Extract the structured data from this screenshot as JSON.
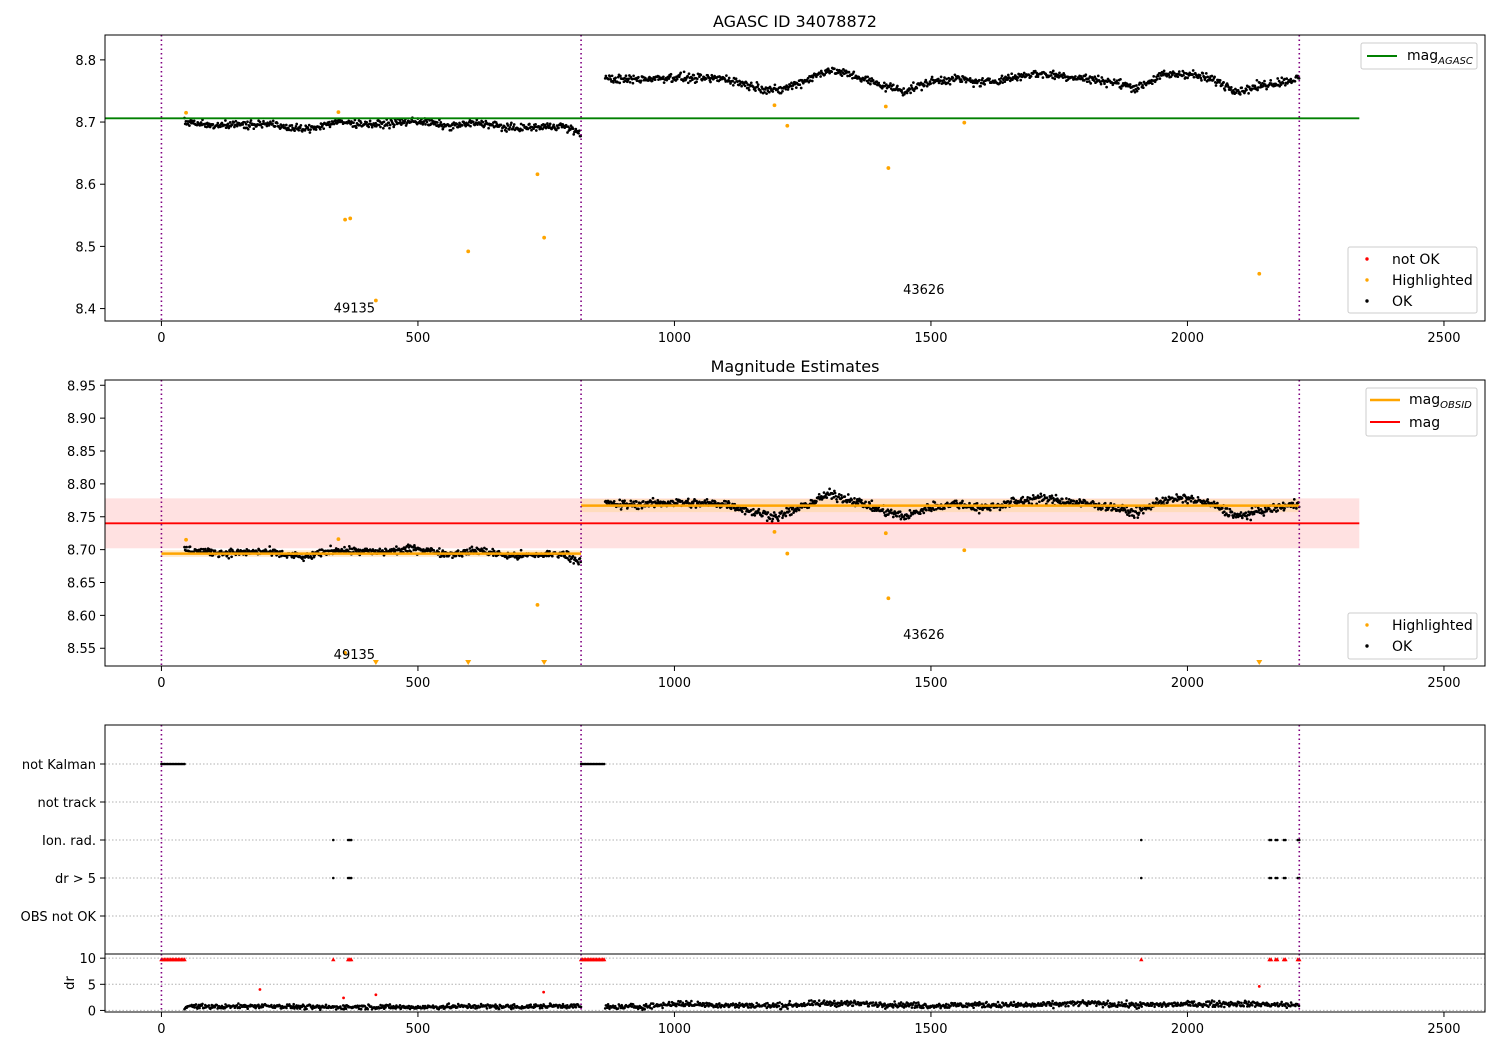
{
  "colors": {
    "ok": "#000000",
    "not_ok": "#ff0000",
    "highlighted": "#ffa500",
    "mag_agasc": "#008000",
    "mag_obsid": "#ffa500",
    "mag": "#ff0000",
    "obs_boundary": "#800080",
    "grid": "#b0b0b0"
  },
  "obs_boundaries": [
    0,
    818,
    2218
  ],
  "obsids": [
    {
      "label": "49135",
      "x_start": 0,
      "x_end": 818
    },
    {
      "label": "43626",
      "x_start": 818,
      "x_end": 2218
    }
  ],
  "chart_data": [
    {
      "type": "scatter",
      "title": "AGASC ID 34078872",
      "xlabel": "",
      "ylabel": "",
      "xlim": [
        -110,
        2580
      ],
      "ylim": [
        8.38,
        8.84
      ],
      "xticks": [
        0,
        500,
        1000,
        1500,
        2000,
        2500
      ],
      "yticks": [
        8.4,
        8.5,
        8.6,
        8.7,
        8.8
      ],
      "ytick_labels": [
        "8.4",
        "8.5",
        "8.6",
        "8.7",
        "8.8"
      ],
      "obsid_label_positions": [
        {
          "x": 365,
          "y": 8.4
        },
        {
          "x": 1475,
          "y": 8.43
        }
      ],
      "lines": [
        {
          "name": "mag_AGASC",
          "x": [
            -110,
            2335
          ],
          "y": [
            8.706,
            8.706
          ]
        }
      ],
      "series": [
        {
          "name": "not OK",
          "kind": "points",
          "x": [],
          "y": []
        },
        {
          "name": "Highlighted",
          "kind": "points",
          "x": [
            48,
            345,
            358,
            368,
            418,
            598,
            733,
            746,
            1195,
            1220,
            1412,
            1417,
            1565,
            2140
          ],
          "y": [
            8.715,
            8.716,
            8.543,
            8.545,
            8.413,
            8.492,
            8.616,
            8.514,
            8.727,
            8.694,
            8.725,
            8.626,
            8.699,
            8.456
          ]
        },
        {
          "name": "OK",
          "kind": "noisy-segments",
          "segments": [
            {
              "x": [
                45,
                120,
                200,
                280,
                340,
                420,
                500,
                560,
                620,
                680,
                740,
                780,
                818
              ],
              "y": [
                8.7,
                8.695,
                8.697,
                8.688,
                8.7,
                8.696,
                8.702,
                8.693,
                8.699,
                8.69,
                8.692,
                8.694,
                8.682
              ],
              "spread": 0.006
            },
            {
              "x": [
                865,
                900,
                950,
                1000,
                1050,
                1100,
                1150,
                1200,
                1250,
                1300,
                1350,
                1400,
                1450,
                1500,
                1550,
                1600,
                1650,
                1700,
                1750,
                1800,
                1850,
                1900,
                1950,
                2000,
                2050,
                2100,
                2150,
                2218
              ],
              "y": [
                8.77,
                8.768,
                8.77,
                8.772,
                8.77,
                8.77,
                8.758,
                8.75,
                8.765,
                8.784,
                8.775,
                8.76,
                8.75,
                8.765,
                8.77,
                8.763,
                8.77,
                8.778,
                8.775,
                8.77,
                8.765,
                8.755,
                8.775,
                8.778,
                8.768,
                8.75,
                8.76,
                8.77
              ],
              "spread": 0.007
            }
          ]
        }
      ],
      "legends": [
        {
          "position": "upper right",
          "entries": [
            "mag_AGASC"
          ]
        },
        {
          "position": "lower right",
          "entries": [
            "not OK",
            "Highlighted",
            "OK"
          ]
        }
      ]
    },
    {
      "type": "scatter",
      "title": "Magnitude Estimates",
      "xlabel": "",
      "ylabel": "",
      "xlim": [
        -110,
        2580
      ],
      "ylim": [
        8.523,
        8.958
      ],
      "xticks": [
        0,
        500,
        1000,
        1500,
        2000,
        2500
      ],
      "yticks": [
        8.55,
        8.6,
        8.65,
        8.7,
        8.75,
        8.8,
        8.85,
        8.9,
        8.95
      ],
      "ytick_labels": [
        "8.55",
        "8.60",
        "8.65",
        "8.70",
        "8.75",
        "8.80",
        "8.85",
        "8.90",
        "8.95"
      ],
      "obsid_label_positions": [
        {
          "x": 365,
          "y": 8.54
        },
        {
          "x": 1475,
          "y": 8.57
        }
      ],
      "bands": [
        {
          "name": "mag",
          "x": [
            -110,
            2335
          ],
          "y_low": 8.702,
          "y_high": 8.778,
          "color": "#ffc8c8"
        },
        {
          "name": "mag_OBSID 49135",
          "x": [
            0,
            818
          ],
          "y_low": 8.689,
          "y_high": 8.699,
          "color": "#ffd9a0"
        },
        {
          "name": "mag_OBSID 43626",
          "x": [
            818,
            2218
          ],
          "y_low": 8.757,
          "y_high": 8.777,
          "color": "#ffd9a0"
        }
      ],
      "lines": [
        {
          "name": "mag",
          "x": [
            -110,
            2335
          ],
          "y": [
            8.74,
            8.74
          ]
        },
        {
          "name": "mag_OBSID",
          "x": [
            0,
            818
          ],
          "y": [
            8.694,
            8.694
          ]
        },
        {
          "name": "mag_OBSID",
          "x": [
            818,
            2218
          ],
          "y": [
            8.767,
            8.767
          ]
        }
      ],
      "series": [
        {
          "name": "Highlighted",
          "kind": "points",
          "x": [
            48,
            345,
            358,
            733,
            1195,
            1220,
            1412,
            1417,
            1565
          ],
          "y": [
            8.715,
            8.716,
            8.543,
            8.616,
            8.727,
            8.694,
            8.725,
            8.626,
            8.699
          ]
        },
        {
          "name": "Highlighted (below range)",
          "kind": "lower-markers",
          "x": [
            418,
            598,
            746,
            2140
          ],
          "y": [
            8.527,
            8.527,
            8.527,
            8.527
          ]
        },
        {
          "name": "OK",
          "kind": "noisy-segments",
          "segments": [
            {
              "x": [
                45,
                120,
                200,
                280,
                340,
                420,
                500,
                560,
                620,
                680,
                740,
                780,
                818
              ],
              "y": [
                8.7,
                8.695,
                8.697,
                8.688,
                8.7,
                8.696,
                8.702,
                8.693,
                8.699,
                8.69,
                8.692,
                8.694,
                8.682
              ],
              "spread": 0.006
            },
            {
              "x": [
                865,
                900,
                950,
                1000,
                1050,
                1100,
                1150,
                1200,
                1250,
                1300,
                1350,
                1400,
                1450,
                1500,
                1550,
                1600,
                1650,
                1700,
                1750,
                1800,
                1850,
                1900,
                1950,
                2000,
                2050,
                2100,
                2150,
                2218
              ],
              "y": [
                8.77,
                8.768,
                8.77,
                8.772,
                8.77,
                8.77,
                8.758,
                8.75,
                8.765,
                8.784,
                8.775,
                8.76,
                8.75,
                8.765,
                8.77,
                8.763,
                8.77,
                8.778,
                8.775,
                8.77,
                8.765,
                8.755,
                8.775,
                8.778,
                8.768,
                8.75,
                8.76,
                8.77
              ],
              "spread": 0.007
            }
          ]
        }
      ],
      "legends": [
        {
          "position": "upper right",
          "entries": [
            "mag_OBSID",
            "mag"
          ]
        },
        {
          "position": "lower right",
          "entries": [
            "Highlighted",
            "OK"
          ]
        }
      ]
    },
    {
      "type": "scatter",
      "title": "",
      "xlabel": "",
      "ylabel": "",
      "xlim": [
        -110,
        2580
      ],
      "xticks": [
        0,
        500,
        1000,
        1500,
        2000,
        2500
      ],
      "categories": [
        "not Kalman",
        "not track",
        "Ion. rad.",
        "dr > 5",
        "OBS not OK"
      ],
      "flags": [
        {
          "category": "not Kalman",
          "x_ranges": [
            [
              0,
              45
            ],
            [
              818,
              865
            ]
          ]
        },
        {
          "category": "not track",
          "x_ranges": []
        },
        {
          "category": "Ion. rad.",
          "x_ranges": [
            [
              335,
              337
            ],
            [
              364,
              372
            ],
            [
              1910,
              1912
            ],
            [
              2160,
              2163
            ],
            [
              2172,
              2175
            ],
            [
              2188,
              2191
            ],
            [
              2215,
              2218
            ]
          ]
        },
        {
          "category": "dr > 5",
          "x_ranges": [
            [
              335,
              337
            ],
            [
              364,
              372
            ],
            [
              1910,
              1912
            ],
            [
              2160,
              2163
            ],
            [
              2172,
              2175
            ],
            [
              2188,
              2191
            ],
            [
              2215,
              2218
            ]
          ]
        },
        {
          "category": "OBS not OK",
          "x_ranges": []
        }
      ]
    },
    {
      "type": "scatter",
      "title": "",
      "xlabel": "",
      "ylabel": "dr",
      "xlim": [
        -110,
        2580
      ],
      "ylim": [
        -0.3,
        10.8
      ],
      "xticks": [
        0,
        500,
        1000,
        1500,
        2000,
        2500
      ],
      "xtick_labels": [
        "0",
        "500",
        "1000",
        "1500",
        "2000",
        "2500"
      ],
      "yticks": [
        0,
        5,
        10
      ],
      "ytick_labels": [
        "0",
        "5",
        "10"
      ],
      "series": [
        {
          "name": "OK",
          "kind": "noisy-segments",
          "segments": [
            {
              "x": [
                45,
                120,
                200,
                300,
                400,
                500,
                600,
                700,
                780,
                818
              ],
              "y": [
                0.8,
                0.7,
                0.9,
                0.6,
                0.7,
                0.6,
                0.8,
                0.7,
                0.9,
                0.8
              ],
              "spread": 0.45
            },
            {
              "x": [
                865,
                950,
                1000,
                1100,
                1200,
                1300,
                1400,
                1500,
                1600,
                1700,
                1800,
                1900,
                2000,
                2100,
                2218
              ],
              "y": [
                0.6,
                0.8,
                1.3,
                1.0,
                0.9,
                1.4,
                1.2,
                0.9,
                1.1,
                1.0,
                1.4,
                1.0,
                1.2,
                1.3,
                1.0
              ],
              "spread": 0.55
            }
          ]
        },
        {
          "name": "not OK",
          "kind": "points",
          "x": [
            192,
            355,
            418,
            745,
            2140
          ],
          "y": [
            4.0,
            2.4,
            3.0,
            3.5,
            4.6
          ]
        },
        {
          "name": "not OK (clipped)",
          "kind": "upper-markers",
          "x_ranges": [
            [
              0,
              45
            ],
            [
              335,
              337
            ],
            [
              364,
              372
            ],
            [
              818,
              865
            ],
            [
              1910,
              1912
            ],
            [
              2160,
              2163
            ],
            [
              2172,
              2175
            ],
            [
              2188,
              2191
            ],
            [
              2215,
              2218
            ]
          ],
          "y": 9.8
        }
      ]
    }
  ]
}
